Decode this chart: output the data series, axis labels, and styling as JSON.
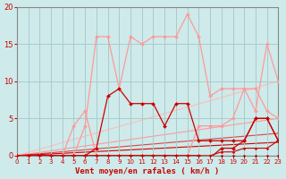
{
  "bg_color": "#ceeaea",
  "grid_color": "#aacccc",
  "xlabel": "Vent moyen/en rafales ( km/h )",
  "xlim": [
    0,
    23
  ],
  "ylim": [
    -0.5,
    20
  ],
  "yticks": [
    0,
    5,
    10,
    15,
    20
  ],
  "xticks": [
    0,
    1,
    2,
    3,
    4,
    5,
    6,
    7,
    8,
    9,
    10,
    11,
    12,
    13,
    14,
    15,
    16,
    17,
    18,
    19,
    20,
    21,
    22,
    23
  ],
  "trend1_x": [
    0,
    23
  ],
  "trend1_y": [
    0,
    1.8
  ],
  "trend1_color": "#cc0000",
  "trend2_x": [
    0,
    23
  ],
  "trend2_y": [
    0,
    3.0
  ],
  "trend2_color": "#dd4444",
  "trend3_x": [
    0,
    23
  ],
  "trend3_y": [
    0,
    5.0
  ],
  "trend3_color": "#ff9999",
  "trend4_x": [
    0,
    23
  ],
  "trend4_y": [
    0,
    10.0
  ],
  "trend4_color": "#ffbbbb",
  "rafales_x": [
    0,
    1,
    2,
    3,
    4,
    5,
    6,
    7,
    8,
    9,
    10,
    11,
    12,
    13,
    14,
    15,
    16,
    17,
    18,
    19,
    20,
    21,
    22,
    23
  ],
  "rafales_y": [
    0,
    0,
    0,
    0,
    0,
    0,
    4,
    16,
    16,
    9,
    16,
    15,
    16,
    16,
    16,
    19,
    16,
    8,
    9,
    9,
    9,
    6,
    15,
    10
  ],
  "rafales_color": "#ff9999",
  "med_pink_x": [
    0,
    1,
    2,
    3,
    4,
    5,
    6,
    7,
    8,
    9,
    10,
    11,
    12,
    13,
    14,
    15,
    16,
    17,
    18,
    19,
    20,
    21,
    22,
    23
  ],
  "med_pink_y": [
    0,
    0,
    0,
    0,
    0,
    4,
    6,
    0,
    0,
    0,
    0,
    0,
    0,
    0,
    0,
    0,
    4,
    4,
    4,
    5,
    9,
    9,
    6,
    5
  ],
  "med_pink_color": "#ff9999",
  "red1_x": [
    0,
    1,
    2,
    3,
    4,
    5,
    6,
    7,
    8,
    9,
    10,
    11,
    12,
    13,
    14,
    15,
    16,
    17,
    18,
    19,
    20,
    21,
    22,
    23
  ],
  "red1_y": [
    0,
    0,
    0,
    0,
    0,
    0,
    0,
    1,
    8,
    9,
    7,
    7,
    7,
    4,
    7,
    7,
    2,
    2,
    2,
    2,
    2,
    5,
    5,
    2
  ],
  "red1_color": "#cc0000",
  "red2_x": [
    0,
    1,
    2,
    3,
    4,
    5,
    6,
    7,
    8,
    9,
    10,
    11,
    12,
    13,
    14,
    15,
    16,
    17,
    18,
    19,
    20,
    21,
    22,
    23
  ],
  "red2_y": [
    0,
    0,
    0,
    0,
    0,
    0,
    0,
    0,
    0,
    0,
    0,
    0,
    0,
    0,
    0,
    0,
    0,
    -0.3,
    1,
    1,
    2,
    5,
    5,
    2
  ],
  "red2_color": "#cc0000",
  "flat1_x": [
    0,
    1,
    2,
    3,
    4,
    5,
    6,
    7,
    8,
    9,
    10,
    11,
    12,
    13,
    14,
    15,
    16,
    17,
    18,
    19,
    20,
    21,
    22,
    23
  ],
  "flat1_y": [
    0,
    0,
    0,
    0,
    0,
    0,
    0,
    0,
    0,
    0,
    0,
    0,
    0,
    0,
    0,
    0,
    0,
    0,
    0,
    0,
    0,
    0,
    0,
    0
  ],
  "flat1_color": "#990000",
  "flat2_x": [
    0,
    1,
    2,
    3,
    4,
    5,
    6,
    7,
    8,
    9,
    10,
    11,
    12,
    13,
    14,
    15,
    16,
    17,
    18,
    19,
    20,
    21,
    22,
    23
  ],
  "flat2_y": [
    0,
    0,
    0,
    0,
    0,
    0,
    0,
    0,
    0,
    0,
    0,
    0,
    0,
    0,
    0,
    0,
    0,
    0,
    0.5,
    0.5,
    1,
    1,
    1,
    2
  ],
  "flat2_color": "#cc0000",
  "xlabel_color": "#cc0000",
  "tick_color": "#cc0000",
  "axis_color": "#888888"
}
